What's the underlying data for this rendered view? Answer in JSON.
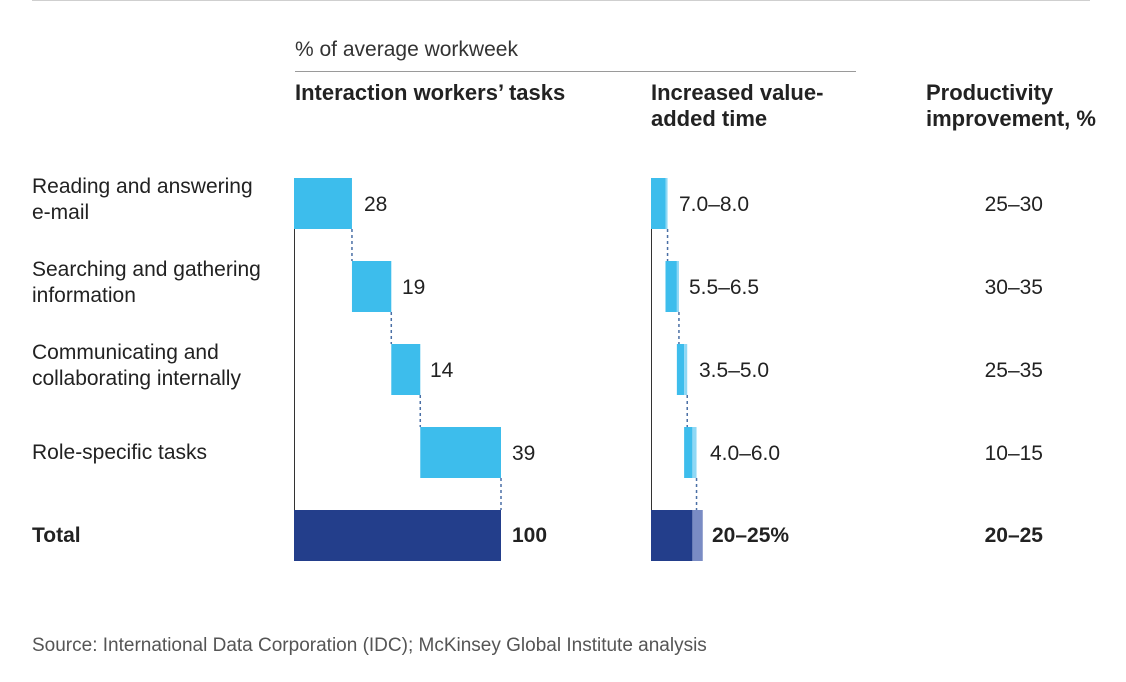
{
  "chart_data": {
    "type": "bar",
    "subtitle": "% of average workweek",
    "headers": {
      "tasks": "Interaction workers’ tasks",
      "value_added": "Increased value-added time",
      "productivity": "Productivity improvement, %"
    },
    "rows": [
      {
        "label": "Reading and answering e-mail",
        "share": 28,
        "share_label": "28",
        "value_added": "7.0–8.0",
        "va_low": 7.0,
        "va_high": 8.0,
        "productivity": "25–30"
      },
      {
        "label": "Searching and gathering information",
        "share": 19,
        "share_label": "19",
        "value_added": "5.5–6.5",
        "va_low": 5.5,
        "va_high": 6.5,
        "productivity": "30–35"
      },
      {
        "label": "Communicating and collaborating internally",
        "share": 14,
        "share_label": "14",
        "value_added": "3.5–5.0",
        "va_low": 3.5,
        "va_high": 5.0,
        "productivity": "25–35"
      },
      {
        "label": "Role-specific tasks",
        "share": 39,
        "share_label": "39",
        "value_added": "4.0–6.0",
        "va_low": 4.0,
        "va_high": 6.0,
        "productivity": "10–15"
      }
    ],
    "total": {
      "label": "Total",
      "share": 100,
      "share_label": "100",
      "value_added": "20–25%",
      "va_low": 20,
      "va_high": 25,
      "productivity": "20–25"
    },
    "colors": {
      "bar": "#3dbdec",
      "bar_light": "#8fd8f5",
      "total": "#233e8b",
      "total_light": "#7a8cc4",
      "connector": "#4a6fa5"
    }
  },
  "source": "Source: International Data Corporation (IDC); McKinsey Global Institute analysis"
}
